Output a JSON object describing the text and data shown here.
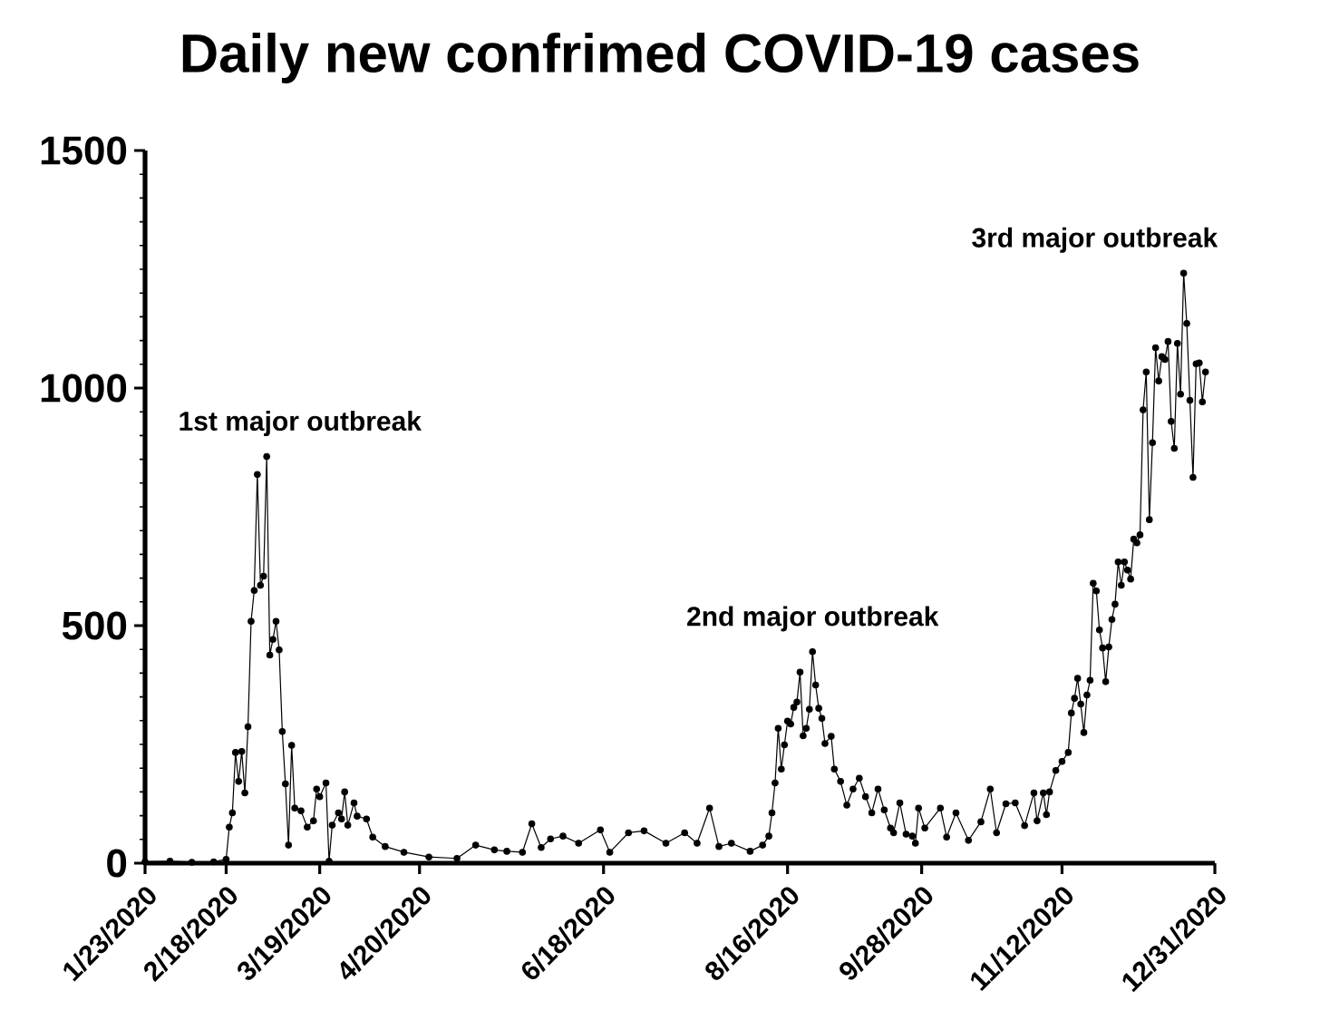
{
  "chart_data": {
    "type": "line",
    "title": "Daily new confrimed COVID-19 cases",
    "xlim": [
      "2020-01-23",
      "2020-12-31"
    ],
    "xticks": [
      {
        "value": "2020-01-23",
        "label": "1/23/2020"
      },
      {
        "value": "2020-02-18",
        "label": "2/18/2020"
      },
      {
        "value": "2020-03-19",
        "label": "3/19/2020"
      },
      {
        "value": "2020-04-20",
        "label": "4/20/2020"
      },
      {
        "value": "2020-06-18",
        "label": "6/18/2020"
      },
      {
        "value": "2020-08-16",
        "label": "8/16/2020"
      },
      {
        "value": "2020-09-28",
        "label": "9/28/2020"
      },
      {
        "value": "2020-11-12",
        "label": "11/12/2020"
      },
      {
        "value": "2020-12-31",
        "label": "12/31/2020"
      }
    ],
    "ylim": [
      0,
      1500
    ],
    "yticks": [
      0,
      500,
      1000,
      1500
    ],
    "marker": "circle",
    "line_style": "solid",
    "grid": false,
    "legend": false,
    "annotations": [
      {
        "text": "1st major outbreak",
        "x": "2020-03-02",
        "y": 856
      },
      {
        "text": "2nd major outbreak",
        "x": "2020-08-24",
        "y": 445
      },
      {
        "text": "3rd major outbreak",
        "x": "2020-12-21",
        "y": 1242
      }
    ],
    "series": [
      {
        "color": "#000000",
        "x": [
          "2020-01-23",
          "2020-01-31",
          "2020-02-07",
          "2020-02-14",
          "2020-02-18",
          "2020-02-19",
          "2020-02-20",
          "2020-02-21",
          "2020-02-22",
          "2020-02-23",
          "2020-02-24",
          "2020-02-25",
          "2020-02-26",
          "2020-02-27",
          "2020-02-28",
          "2020-02-29",
          "2020-03-01",
          "2020-03-02",
          "2020-03-03",
          "2020-03-04",
          "2020-03-05",
          "2020-03-06",
          "2020-03-07",
          "2020-03-08",
          "2020-03-09",
          "2020-03-10",
          "2020-03-11",
          "2020-03-13",
          "2020-03-15",
          "2020-03-17",
          "2020-03-18",
          "2020-03-19",
          "2020-03-21",
          "2020-03-22",
          "2020-03-23",
          "2020-03-25",
          "2020-03-26",
          "2020-03-27",
          "2020-03-28",
          "2020-03-30",
          "2020-03-31",
          "2020-04-03",
          "2020-04-05",
          "2020-04-09",
          "2020-04-15",
          "2020-04-23",
          "2020-05-02",
          "2020-05-08",
          "2020-05-14",
          "2020-05-18",
          "2020-05-23",
          "2020-05-26",
          "2020-05-29",
          "2020-06-01",
          "2020-06-05",
          "2020-06-10",
          "2020-06-17",
          "2020-06-20",
          "2020-06-26",
          "2020-07-01",
          "2020-07-08",
          "2020-07-14",
          "2020-07-18",
          "2020-07-22",
          "2020-07-25",
          "2020-07-29",
          "2020-08-04",
          "2020-08-08",
          "2020-08-10",
          "2020-08-11",
          "2020-08-12",
          "2020-08-13",
          "2020-08-14",
          "2020-08-15",
          "2020-08-16",
          "2020-08-17",
          "2020-08-18",
          "2020-08-19",
          "2020-08-20",
          "2020-08-21",
          "2020-08-22",
          "2020-08-23",
          "2020-08-24",
          "2020-08-25",
          "2020-08-26",
          "2020-08-27",
          "2020-08-28",
          "2020-08-30",
          "2020-08-31",
          "2020-09-02",
          "2020-09-04",
          "2020-09-06",
          "2020-09-08",
          "2020-09-10",
          "2020-09-12",
          "2020-09-14",
          "2020-09-16",
          "2020-09-18",
          "2020-09-19",
          "2020-09-21",
          "2020-09-23",
          "2020-09-25",
          "2020-09-26",
          "2020-09-27",
          "2020-09-29",
          "2020-10-04",
          "2020-10-06",
          "2020-10-09",
          "2020-10-13",
          "2020-10-17",
          "2020-10-20",
          "2020-10-22",
          "2020-10-25",
          "2020-10-28",
          "2020-10-31",
          "2020-11-03",
          "2020-11-04",
          "2020-11-06",
          "2020-11-07",
          "2020-11-08",
          "2020-11-10",
          "2020-11-12",
          "2020-11-14",
          "2020-11-15",
          "2020-11-16",
          "2020-11-17",
          "2020-11-18",
          "2020-11-19",
          "2020-11-20",
          "2020-11-21",
          "2020-11-22",
          "2020-11-23",
          "2020-11-24",
          "2020-11-25",
          "2020-11-26",
          "2020-11-27",
          "2020-11-28",
          "2020-11-29",
          "2020-11-30",
          "2020-12-01",
          "2020-12-02",
          "2020-12-03",
          "2020-12-04",
          "2020-12-05",
          "2020-12-06",
          "2020-12-07",
          "2020-12-08",
          "2020-12-09",
          "2020-12-10",
          "2020-12-11",
          "2020-12-12",
          "2020-12-13",
          "2020-12-14",
          "2020-12-15",
          "2020-12-16",
          "2020-12-17",
          "2020-12-18",
          "2020-12-19",
          "2020-12-20",
          "2020-12-21",
          "2020-12-22",
          "2020-12-23",
          "2020-12-24",
          "2020-12-25",
          "2020-12-26",
          "2020-12-27",
          "2020-12-28"
        ],
        "values": [
          3,
          4,
          2,
          3,
          8,
          76,
          106,
          233,
          172,
          235,
          148,
          287,
          509,
          574,
          818,
          585,
          604,
          856,
          438,
          471,
          509,
          449,
          277,
          167,
          38,
          248,
          116,
          110,
          76,
          89,
          156,
          140,
          169,
          4,
          80,
          106,
          93,
          150,
          80,
          127,
          99,
          93,
          55,
          35,
          23,
          13,
          10,
          38,
          28,
          25,
          23,
          83,
          33,
          51,
          57,
          42,
          70,
          23,
          64,
          68,
          42,
          64,
          42,
          116,
          35,
          42,
          25,
          38,
          57,
          106,
          169,
          284,
          198,
          249,
          299,
          293,
          328,
          339,
          402,
          268,
          284,
          324,
          445,
          375,
          326,
          305,
          252,
          267,
          198,
          172,
          122,
          156,
          179,
          140,
          106,
          156,
          112,
          74,
          64,
          127,
          61,
          57,
          42,
          116,
          74,
          116,
          55,
          106,
          48,
          87,
          156,
          64,
          125,
          127,
          79,
          148,
          89,
          148,
          102,
          150,
          195,
          214,
          233,
          316,
          347,
          389,
          335,
          275,
          354,
          385,
          589,
          573,
          491,
          453,
          382,
          455,
          513,
          545,
          634,
          585,
          634,
          617,
          598,
          682,
          674,
          691,
          954,
          1034,
          723,
          885,
          1085,
          1015,
          1066,
          1060,
          1098,
          930,
          873,
          1094,
          987,
          1242,
          1136,
          974,
          812,
          1051,
          1053,
          971,
          1034
        ]
      }
    ]
  }
}
